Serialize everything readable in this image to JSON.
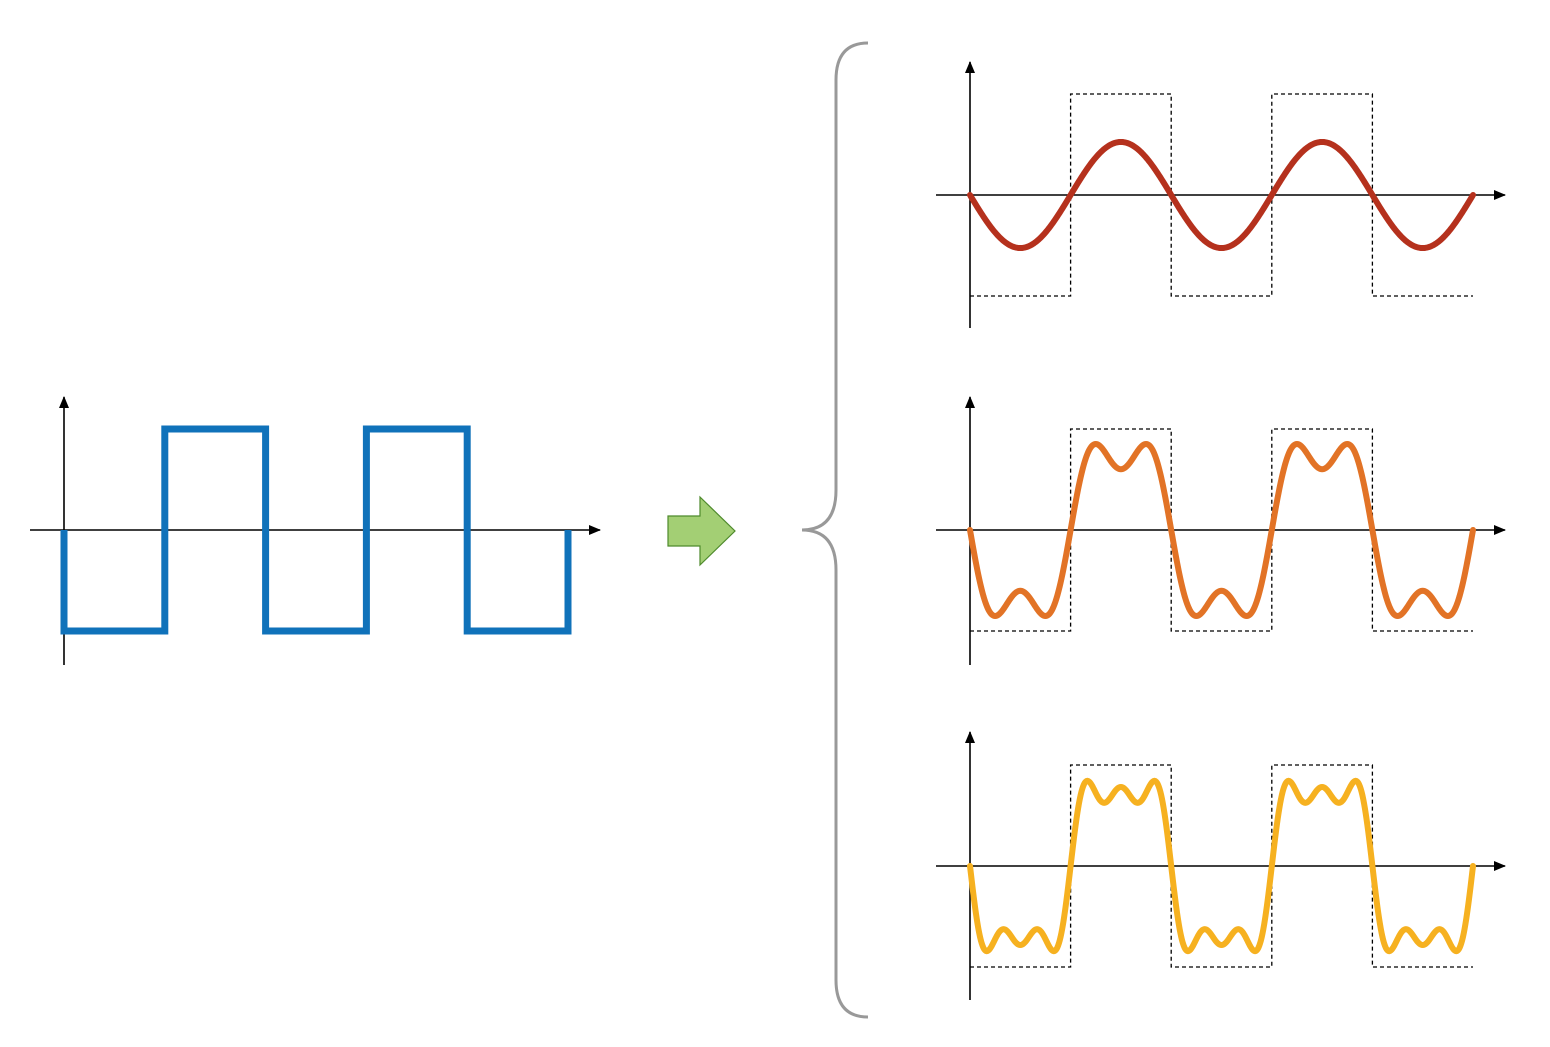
{
  "diagram": {
    "title": "",
    "colors": {
      "axis": "#000000",
      "reference_outline": "#000000",
      "square_wave": "#1072BA",
      "brace": "#999999",
      "arrow_fill": "#A3CF74",
      "arrow_stroke": "#4E8A2C"
    },
    "square_wave": {
      "name": "",
      "periods": 2.5,
      "amplitude": 1
    },
    "arrow_icon": "right-arrow-icon",
    "brace_icon": "curly-brace-icon",
    "approximations": [
      {
        "harmonics": [
          1
        ],
        "color": "#B5311D"
      },
      {
        "harmonics": [
          1,
          3
        ],
        "color": "#E27326"
      },
      {
        "harmonics": [
          1,
          3,
          5
        ],
        "color": "#F6B120"
      }
    ]
  }
}
